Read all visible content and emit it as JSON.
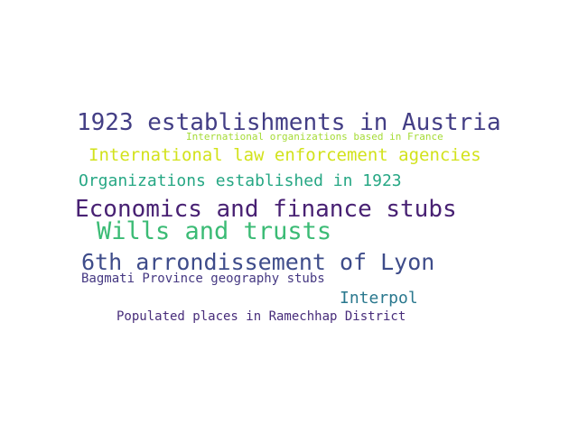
{
  "words": [
    {
      "text": "1923 establishments in Austria",
      "color": "#433e85"
    },
    {
      "text": "International organizations based in France",
      "color": "#a5db36"
    },
    {
      "text": "International law enforcement agencies",
      "color": "#d2e21b"
    },
    {
      "text": "Organizations established in 1923",
      "color": "#26a784"
    },
    {
      "text": "Economics and finance stubs",
      "color": "#482173"
    },
    {
      "text": "Wills and trusts",
      "color": "#3bbb75"
    },
    {
      "text": "6th arrondissement of Lyon",
      "color": "#3e4c8a"
    },
    {
      "text": "Bagmati Province geography stubs",
      "color": "#453882"
    },
    {
      "text": "Interpol",
      "color": "#2a788e"
    },
    {
      "text": "Populated places in Ramechhap District",
      "color": "#472c7a"
    }
  ]
}
